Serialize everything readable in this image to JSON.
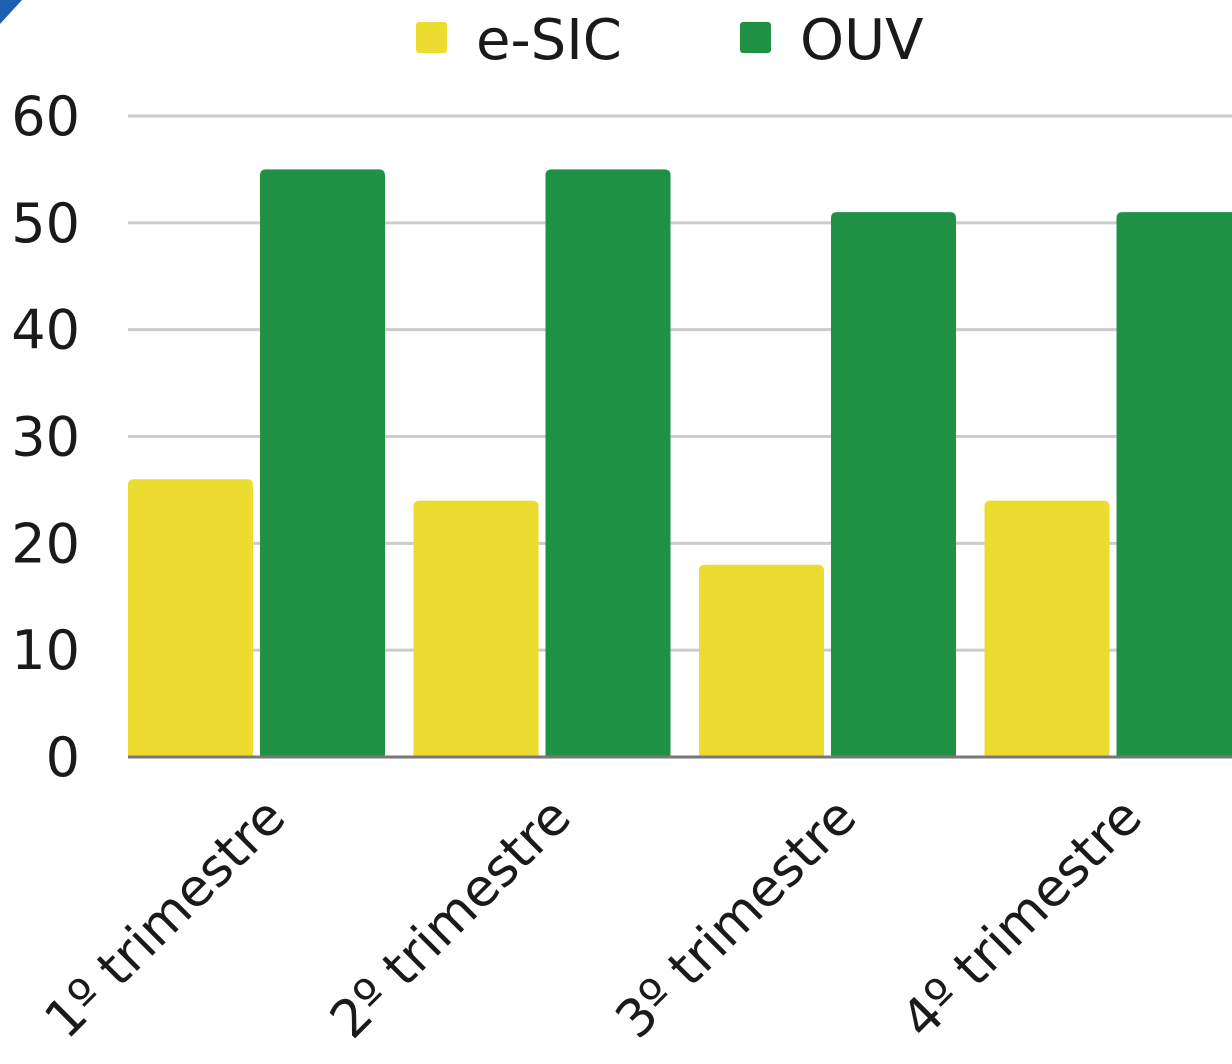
{
  "chart_data": {
    "type": "bar",
    "categories": [
      "1º trimestre",
      "2º trimestre",
      "3º trimestre",
      "4º trimestre"
    ],
    "series": [
      {
        "name": "e-SIC",
        "color": "#ecdc2f",
        "values": [
          26,
          24,
          18,
          24
        ]
      },
      {
        "name": "OUV",
        "color": "#1f9145",
        "values": [
          55,
          55,
          51,
          51
        ]
      }
    ],
    "yticks": [
      "0",
      "10",
      "20",
      "30",
      "40",
      "50",
      "60"
    ],
    "ylim": [
      0,
      60
    ],
    "grid": true,
    "legend": "top-center",
    "title": "",
    "xlabel": "",
    "ylabel": ""
  }
}
